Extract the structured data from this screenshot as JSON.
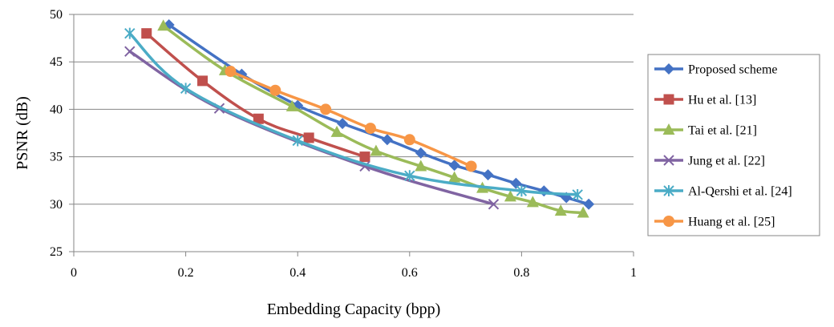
{
  "chart_data": {
    "type": "line",
    "title": "",
    "xlabel": "Embedding Capacity (bpp)",
    "ylabel": "PSNR (dB)",
    "xlim": [
      0,
      1
    ],
    "ylim": [
      25,
      50
    ],
    "xticks": [
      0,
      0.2,
      0.4,
      0.6,
      0.8,
      1
    ],
    "xtick_labels": [
      "0",
      "0.2",
      "0.4",
      "0.6",
      "0.8",
      "1"
    ],
    "yticks": [
      25,
      30,
      35,
      40,
      45,
      50
    ],
    "ytick_labels": [
      "25",
      "30",
      "35",
      "40",
      "45",
      "50"
    ],
    "grid": "horizontal",
    "legend_position": "right",
    "series": [
      {
        "name": "Proposed scheme",
        "color": "#4472C4",
        "marker": "diamond",
        "x": [
          0.17,
          0.3,
          0.4,
          0.48,
          0.56,
          0.62,
          0.68,
          0.74,
          0.79,
          0.84,
          0.88,
          0.92
        ],
        "y": [
          48.9,
          43.7,
          40.4,
          38.5,
          36.8,
          35.4,
          34.1,
          33.1,
          32.2,
          31.4,
          30.7,
          30.0
        ]
      },
      {
        "name": "Hu et al. [13]",
        "color": "#C0504D",
        "marker": "square",
        "x": [
          0.13,
          0.23,
          0.33,
          0.42,
          0.52
        ],
        "y": [
          48.0,
          43.0,
          39.0,
          37.0,
          35.0
        ]
      },
      {
        "name": "Tai et al. [21]",
        "color": "#9BBB59",
        "marker": "triangle",
        "x": [
          0.16,
          0.27,
          0.39,
          0.47,
          0.54,
          0.62,
          0.68,
          0.73,
          0.78,
          0.82,
          0.87,
          0.91
        ],
        "y": [
          48.8,
          44.1,
          40.3,
          37.6,
          35.6,
          34.0,
          32.8,
          31.7,
          30.8,
          30.2,
          29.3,
          29.1
        ]
      },
      {
        "name": "Jung et al. [22]",
        "color": "#8064A2",
        "marker": "x",
        "x": [
          0.1,
          0.26,
          0.52,
          0.75
        ],
        "y": [
          46.1,
          40.1,
          34.0,
          30.0
        ]
      },
      {
        "name": "Al-Qershi et al. [24]",
        "color": "#4BACC6",
        "marker": "asterisk",
        "x": [
          0.1,
          0.2,
          0.4,
          0.6,
          0.8,
          0.9
        ],
        "y": [
          48.0,
          42.2,
          36.7,
          33.0,
          31.4,
          31.0
        ]
      },
      {
        "name": "Huang et al. [25]",
        "color": "#F79646",
        "marker": "circle",
        "x": [
          0.28,
          0.36,
          0.45,
          0.53,
          0.6,
          0.71
        ],
        "y": [
          44.0,
          42.0,
          40.0,
          38.0,
          36.8,
          34.0
        ]
      }
    ]
  }
}
